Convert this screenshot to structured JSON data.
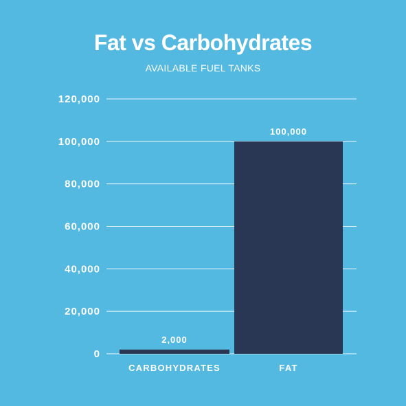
{
  "chart_data": {
    "type": "bar",
    "title": "Fat vs Carbohydrates",
    "subtitle": "AVAILABLE FUEL TANKS",
    "categories": [
      "CARBOHYDRATES",
      "FAT"
    ],
    "values": [
      2000,
      100000
    ],
    "data_labels": [
      "2,000",
      "100,000"
    ],
    "ylim": [
      0,
      120000
    ],
    "yticks": [
      0,
      20000,
      40000,
      60000,
      80000,
      100000,
      120000
    ],
    "ytick_labels": [
      "0",
      "20,000",
      "40,000",
      "60,000",
      "80,000",
      "100,000",
      "120,000"
    ],
    "xlabel": "",
    "ylabel": "",
    "grid": true,
    "legend": "none",
    "colors": {
      "background": "#54b9e0",
      "bar": "#293654",
      "gridline": "#ffffff",
      "text": "#ffffff"
    }
  }
}
